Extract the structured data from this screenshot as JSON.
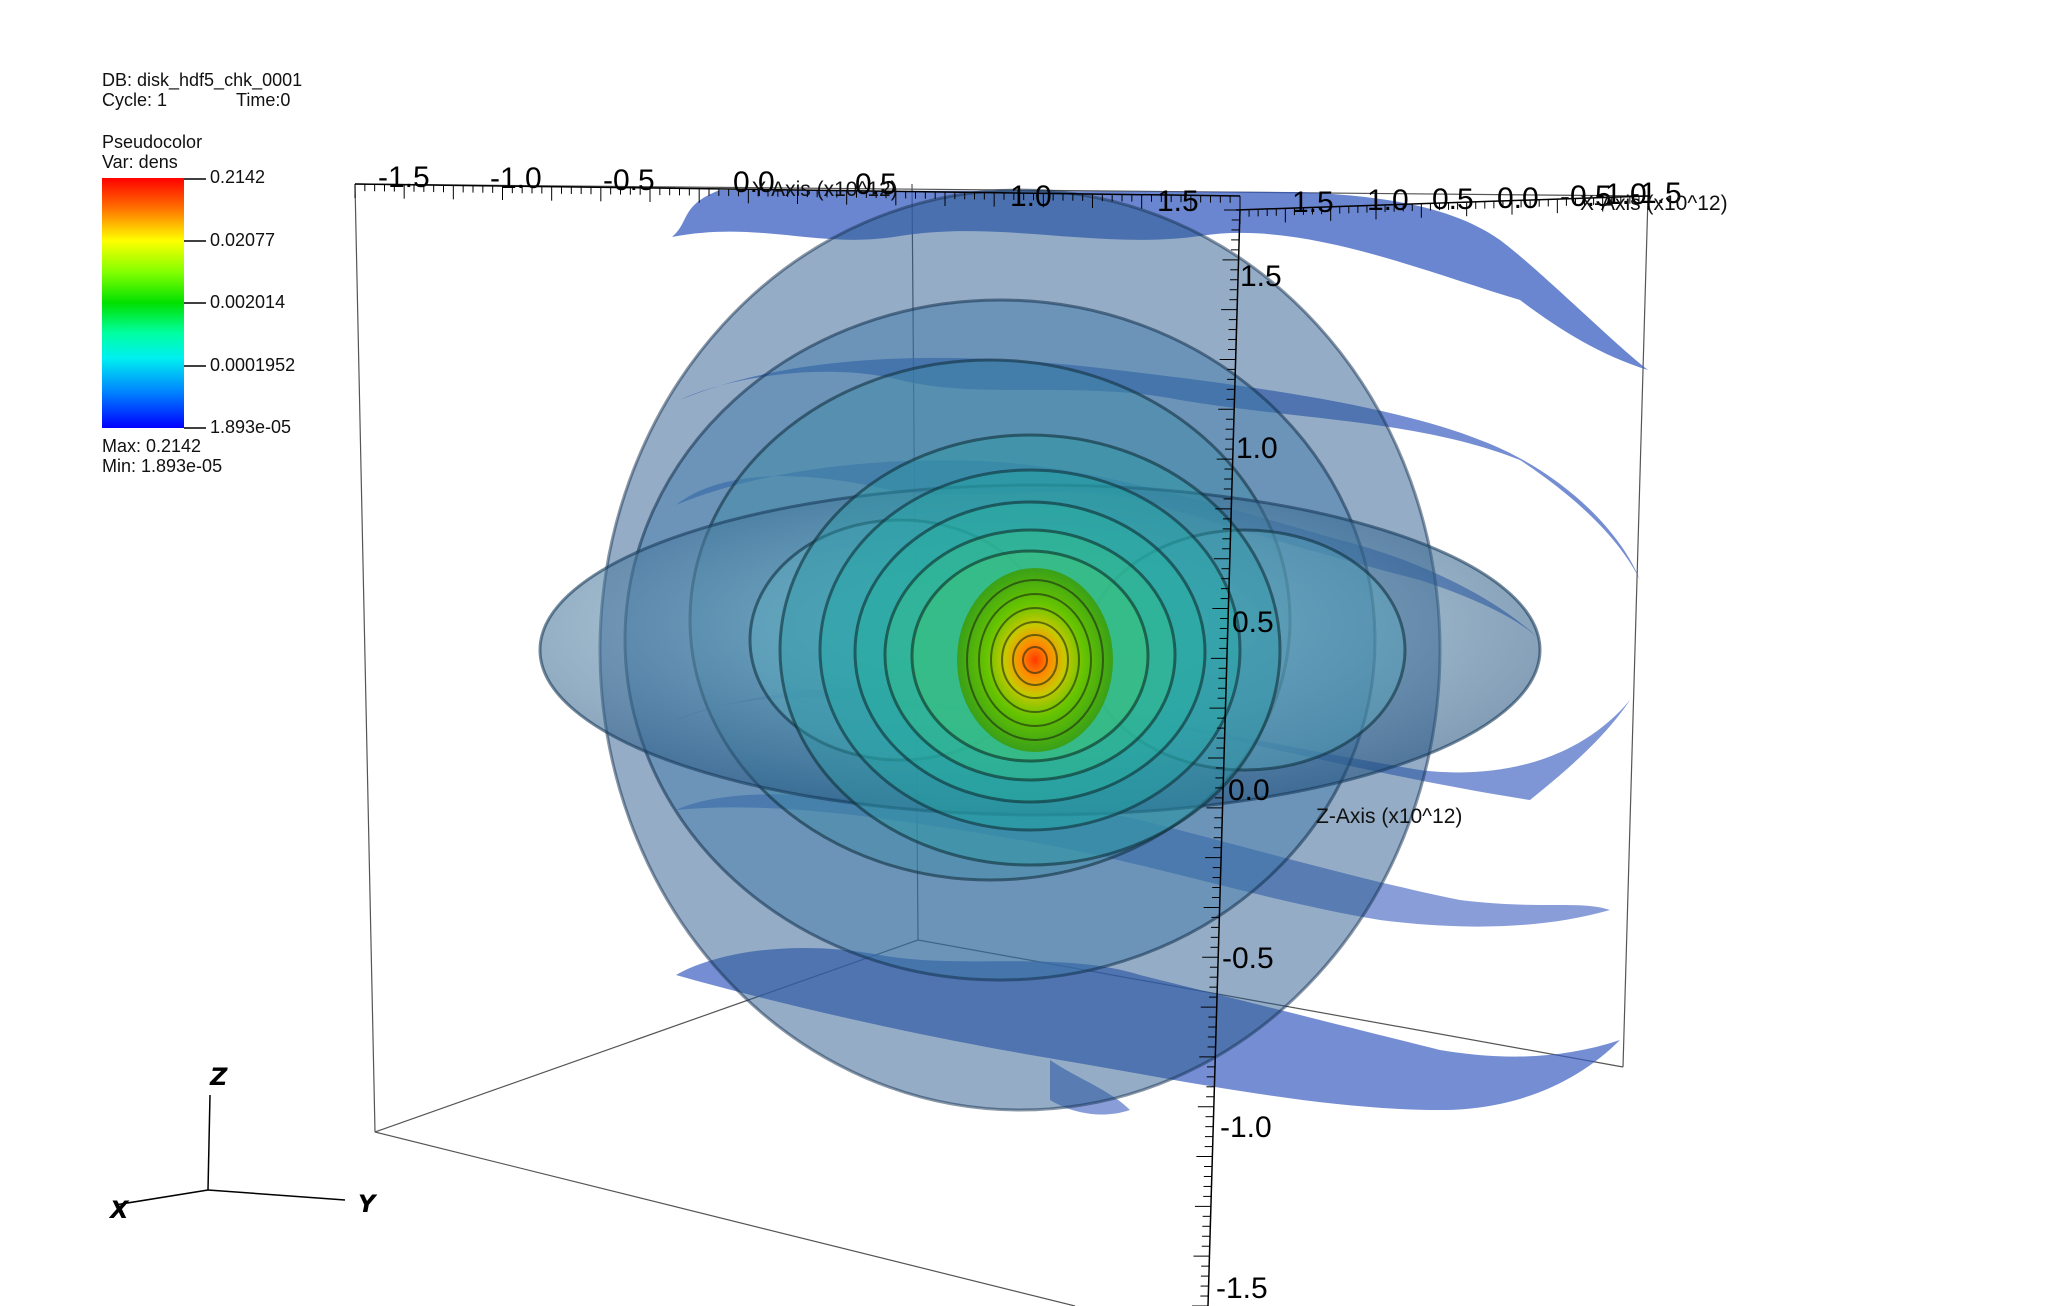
{
  "db": {
    "label": "DB: disk_hdf5_chk_0001",
    "cycle": "Cycle: 1",
    "time": "Time:0"
  },
  "legend": {
    "plot_type": "Pseudocolor",
    "var": "Var: dens",
    "levels": [
      "0.2142",
      "0.02077",
      "0.002014",
      "0.0001952",
      "1.893e-05"
    ],
    "max": "Max: 0.2142",
    "min": "Min: 1.893e-05",
    "colors": [
      "#ff2000",
      "#ffff00",
      "#00e000",
      "#00f0f0",
      "#0000ff"
    ]
  },
  "axes": {
    "y_title": "Y-Axis (x10^12)",
    "x_title": "X-Axis (x10^12)",
    "z_title": "Z-Axis (x10^12)",
    "y_ticks": [
      "-1.5",
      "-1.0",
      "-0.5",
      "0.0",
      "0.5",
      "1.0",
      "1.5"
    ],
    "x_ticks": [
      "1.5",
      "1.0",
      "0.5",
      "0.0",
      "-0.5",
      "-1.0",
      "-1.5"
    ],
    "z_ticks": [
      "1.5",
      "1.0",
      "0.5",
      "0.0",
      "-0.5",
      "-1.0",
      "-1.5"
    ]
  },
  "triad": {
    "z": "Z",
    "x": "X",
    "y": "Y"
  }
}
